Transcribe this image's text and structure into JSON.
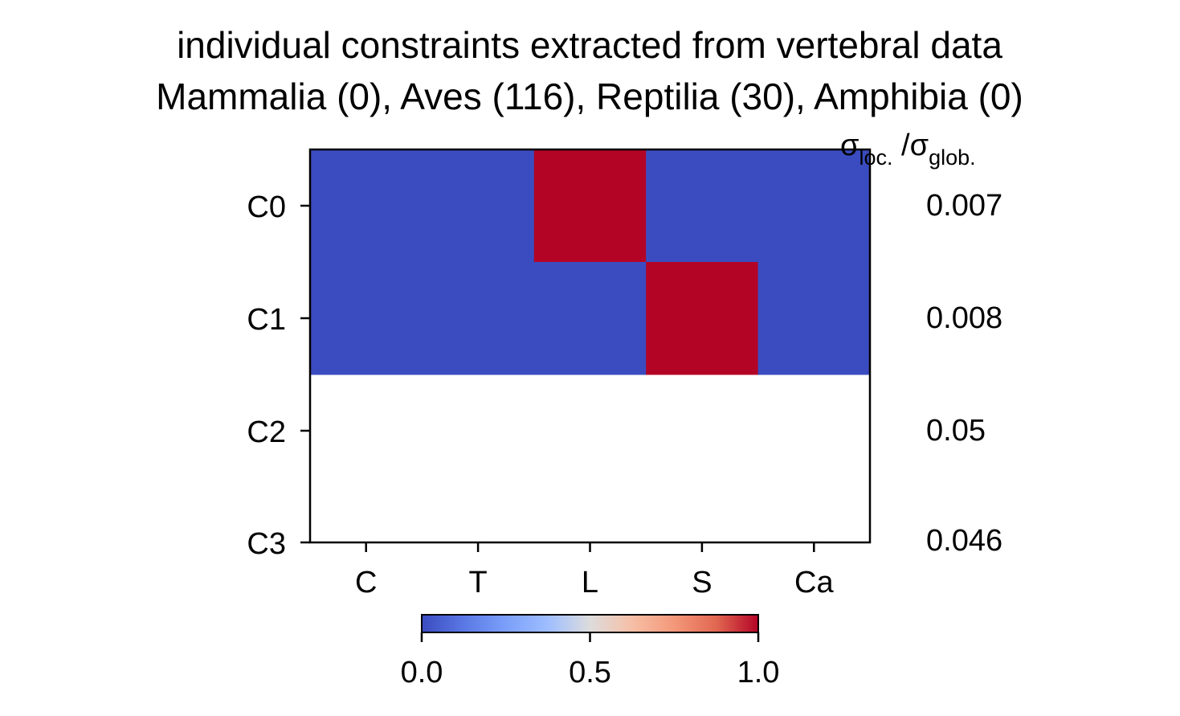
{
  "chart_data": {
    "type": "heatmap",
    "title_lines": [
      "individual constraints extracted from vertebral data",
      "Mammalia (0), Aves (116), Reptilia (30), Amphibia (0)"
    ],
    "x_categories": [
      "C",
      "T",
      "L",
      "S",
      "Ca"
    ],
    "y_categories": [
      "C0",
      "C1",
      "C2",
      "C3"
    ],
    "matrix": [
      [
        0,
        0,
        1,
        0,
        0
      ],
      [
        0,
        0,
        0,
        1,
        0
      ],
      [
        null,
        null,
        null,
        null,
        null
      ],
      [
        null,
        null,
        null,
        null,
        null
      ]
    ],
    "right_header": {
      "sigma1": "σ",
      "sub1": "loc.",
      "slash_sigma2": " /σ",
      "sub2": "glob."
    },
    "right_values": [
      "0.007",
      "0.008",
      "0.05",
      "0.046"
    ],
    "colormap": "coolwarm",
    "colorbar": {
      "range": [
        0,
        1
      ],
      "ticks": [
        0,
        0.5,
        1
      ],
      "tick_labels": [
        "0.0",
        "0.5",
        "1.0"
      ]
    },
    "colors": {
      "low": "#3b4cc0",
      "high": "#b40426",
      "empty": "#ffffff"
    },
    "grid": false
  }
}
